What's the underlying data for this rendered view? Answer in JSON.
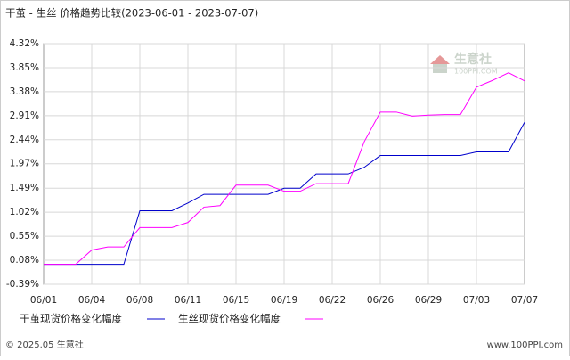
{
  "chart_data": {
    "type": "line",
    "title": "干茧 - 生丝  价格趋势比较(2023-06-01 - 2023-07-07)",
    "categories": [
      "06/01",
      null,
      null,
      "06/04",
      null,
      null,
      "06/08",
      null,
      null,
      "06/11",
      null,
      null,
      "06/15",
      null,
      null,
      "06/19",
      null,
      null,
      "06/22",
      null,
      null,
      "06/26",
      null,
      null,
      "06/29",
      null,
      null,
      "07/03",
      null,
      null,
      "07/07"
    ],
    "series": [
      {
        "name": "干茧现货价格变化幅度",
        "color": "#0000cc",
        "values": [
          0,
          0,
          0,
          0,
          0,
          0,
          1.05,
          1.05,
          1.05,
          1.2,
          1.37,
          1.37,
          1.37,
          1.37,
          1.37,
          1.49,
          1.49,
          1.77,
          1.77,
          1.77,
          1.9,
          2.13,
          2.13,
          2.13,
          2.13,
          2.13,
          2.13,
          2.2,
          2.2,
          2.2,
          2.78
        ]
      },
      {
        "name": "生丝现货价格变化幅度",
        "color": "#ff00ff",
        "values": [
          0,
          0,
          0,
          0.28,
          0.34,
          0.34,
          0.72,
          0.72,
          0.72,
          0.82,
          1.12,
          1.15,
          1.55,
          1.55,
          1.55,
          1.43,
          1.43,
          1.58,
          1.58,
          1.58,
          2.4,
          2.98,
          2.98,
          2.9,
          2.92,
          2.93,
          2.93,
          3.47,
          3.6,
          3.75,
          3.59
        ]
      }
    ],
    "ylim": [
      -0.39,
      4.32
    ],
    "yticks": [
      {
        "value": -0.39,
        "label": "-0.39%"
      },
      {
        "value": 0.08,
        "label": "0.08%"
      },
      {
        "value": 0.55,
        "label": "0.55%"
      },
      {
        "value": 1.02,
        "label": "1.02%"
      },
      {
        "value": 1.49,
        "label": "1.49%"
      },
      {
        "value": 1.97,
        "label": "1.97%"
      },
      {
        "value": 2.44,
        "label": "2.44%"
      },
      {
        "value": 2.91,
        "label": "2.91%"
      },
      {
        "value": 3.38,
        "label": "3.38%"
      },
      {
        "value": 3.85,
        "label": "3.85%"
      },
      {
        "value": 4.32,
        "label": "4.32%"
      }
    ],
    "grid": true,
    "watermark": {
      "name": "生意社",
      "site": "100PPI.COM"
    },
    "footer": {
      "left": "© 2025.05 生意社",
      "right": "www.100PPI.com"
    }
  }
}
